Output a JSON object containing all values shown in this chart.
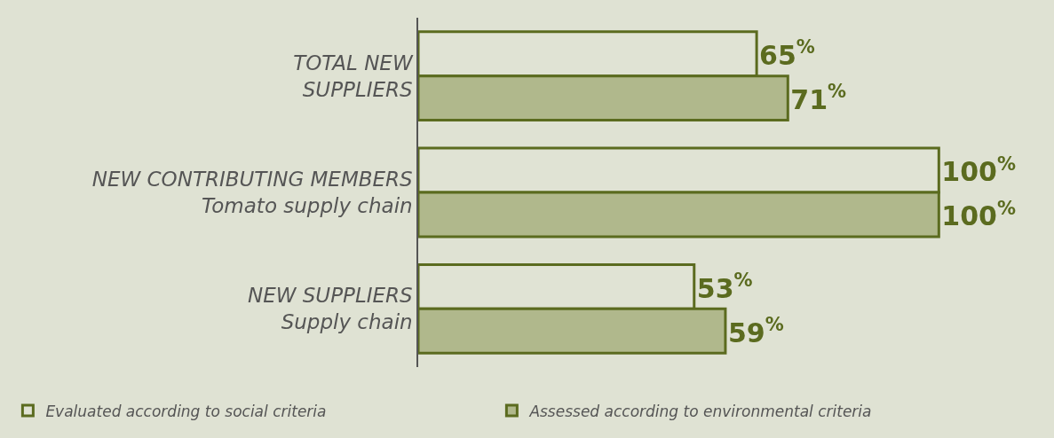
{
  "chart_data": {
    "type": "bar",
    "orientation": "horizontal",
    "categories": [
      "TOTAL NEW\nSUPPLIERS",
      "NEW CONTRIBUTING MEMBERS\nTomato supply chain",
      "NEW SUPPLIERS\nSupply chain"
    ],
    "series": [
      {
        "name": "Evaluated according to social criteria",
        "color": "#e0e3d4",
        "values": [
          65,
          100,
          53
        ],
        "value_labels": [
          "65$^{%}$",
          "100$^{%}$",
          "53$^{%}$"
        ]
      },
      {
        "name": "Assessed according to environmental criteria",
        "color": "#b0b88c",
        "values": [
          71,
          100,
          59
        ],
        "value_labels": [
          "71$^{%}$",
          "100$^{%}$",
          "59$^{%}$"
        ]
      }
    ],
    "legend": "bottom"
  }
}
